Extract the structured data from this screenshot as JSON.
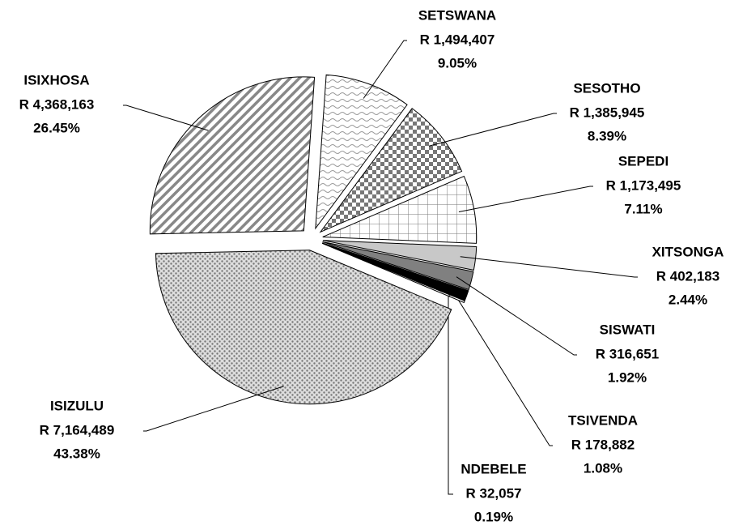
{
  "chart_data": {
    "type": "pie",
    "categories": [
      "SETSWANA",
      "SESOTHO",
      "SEPEDI",
      "XITSONGA",
      "SISWATI",
      "TSIVENDA",
      "NDEBELE",
      "ISIZULU",
      "ISIXHOSA"
    ],
    "values": [
      9.05,
      8.39,
      7.11,
      2.44,
      1.92,
      1.08,
      0.19,
      43.38,
      26.45
    ],
    "value_labels": [
      "9.05%",
      "8.39%",
      "7.11%",
      "2.44%",
      "1.92%",
      "1.08%",
      "0.19%",
      "43.38%",
      "26.45%"
    ],
    "amounts": [
      1494407,
      1385945,
      1173495,
      402183,
      316651,
      178882,
      32057,
      7164489,
      4368163
    ],
    "amount_labels": [
      "R 1,494,407",
      "R 1,385,945",
      "R 1,173,495",
      "R 402,183",
      "R 316,651",
      "R 178,882",
      "R 32,057",
      "R 7,164,489",
      "R 4,368,163"
    ]
  }
}
